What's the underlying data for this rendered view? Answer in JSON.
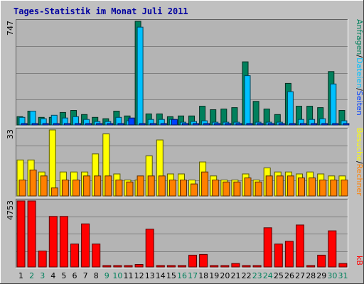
{
  "title": "Tages-Statistik im Monat Juli 2011",
  "colors": {
    "background": "#c0c0c0",
    "panel": "#b4b4b4",
    "grid": "#808080",
    "anfragen": "#00805c",
    "dateien": "#00c0ff",
    "seiten": "#0040ff",
    "besuche": "#ffff00",
    "rechner": "#ff8000",
    "kb": "#ff0000",
    "weekday": "#000000",
    "weekend": "#00805c",
    "title": "#0000a0"
  },
  "right_labels": {
    "top": [
      {
        "text": "Anfragen",
        "color": "#00805c"
      },
      {
        "text": "/",
        "color": "#000000"
      },
      {
        "text": "Dateien",
        "color": "#00c0ff"
      },
      {
        "text": "/",
        "color": "#000000"
      },
      {
        "text": "Seiten",
        "color": "#0040ff"
      }
    ],
    "middle": [
      {
        "text": "Besuche",
        "color": "#ffff00"
      },
      {
        "text": "/",
        "color": "#000000"
      },
      {
        "text": "Rechner",
        "color": "#ff8000"
      }
    ],
    "bottom": [
      {
        "text": "kB",
        "color": "#ff0000"
      }
    ]
  },
  "chart_data": {
    "type": "bar",
    "title": "Tages-Statistik im Monat Juli 2011",
    "categories": [
      "1",
      "2",
      "3",
      "4",
      "5",
      "6",
      "7",
      "8",
      "9",
      "10",
      "11",
      "12",
      "13",
      "14",
      "15",
      "16",
      "17",
      "18",
      "19",
      "20",
      "21",
      "22",
      "23",
      "24",
      "25",
      "26",
      "27",
      "28",
      "29",
      "30",
      "31"
    ],
    "weekend_days": [
      "2",
      "3",
      "9",
      "10",
      "16",
      "17",
      "23",
      "24",
      "30",
      "31"
    ],
    "panels": [
      {
        "name": "top",
        "ymax_label": "747",
        "ylim": [
          0,
          747
        ],
        "series": [
          {
            "name": "Anfragen",
            "values": [
              60,
              100,
              55,
              55,
              90,
              105,
              75,
              55,
              45,
              100,
              65,
              747,
              80,
              80,
              60,
              65,
              65,
              135,
              110,
              115,
              125,
              455,
              170,
              115,
              75,
              300,
              135,
              135,
              125,
              385,
              105
            ]
          },
          {
            "name": "Dateien",
            "values": [
              55,
              100,
              45,
              70,
              50,
              60,
              40,
              25,
              25,
              55,
              30,
              705,
              40,
              40,
              40,
              20,
              25,
              30,
              20,
              20,
              20,
              355,
              20,
              20,
              20,
              240,
              40,
              40,
              45,
              295,
              30
            ]
          },
          {
            "name": "Seiten",
            "values": [
              5,
              5,
              5,
              5,
              5,
              5,
              5,
              5,
              5,
              5,
              50,
              5,
              5,
              5,
              40,
              5,
              5,
              5,
              5,
              5,
              5,
              5,
              5,
              5,
              5,
              5,
              5,
              5,
              5,
              5,
              5
            ]
          }
        ]
      },
      {
        "name": "middle",
        "ymax_label": "33",
        "ylim": [
          0,
          33
        ],
        "series": [
          {
            "name": "Besuche",
            "values": [
              18,
              18,
              12,
              33,
              12,
              12,
              12,
              21,
              31,
              11,
              8,
              8,
              20,
              28,
              11,
              11,
              8,
              17,
              10,
              8,
              8,
              11,
              8,
              14,
              12,
              12,
              11,
              12,
              11,
              10,
              10
            ]
          },
          {
            "name": "Rechner",
            "values": [
              8,
              13,
              10,
              4,
              8,
              8,
              10,
              10,
              10,
              8,
              7,
              10,
              10,
              10,
              8,
              8,
              6,
              12,
              8,
              7,
              7,
              9,
              7,
              10,
              10,
              10,
              9,
              9,
              8,
              8,
              8
            ]
          }
        ]
      },
      {
        "name": "bottom",
        "ymax_label": "4753",
        "ylim": [
          0,
          4753
        ],
        "series": [
          {
            "name": "kB",
            "values": [
              4753,
              4753,
              1150,
              3640,
              3640,
              1650,
              3100,
              1650,
              80,
              80,
              80,
              180,
              2720,
              80,
              80,
              80,
              850,
              900,
              80,
              80,
              250,
              80,
              80,
              2820,
              1650,
              1850,
              3020,
              80,
              850,
              2600,
              250
            ]
          }
        ]
      }
    ]
  }
}
